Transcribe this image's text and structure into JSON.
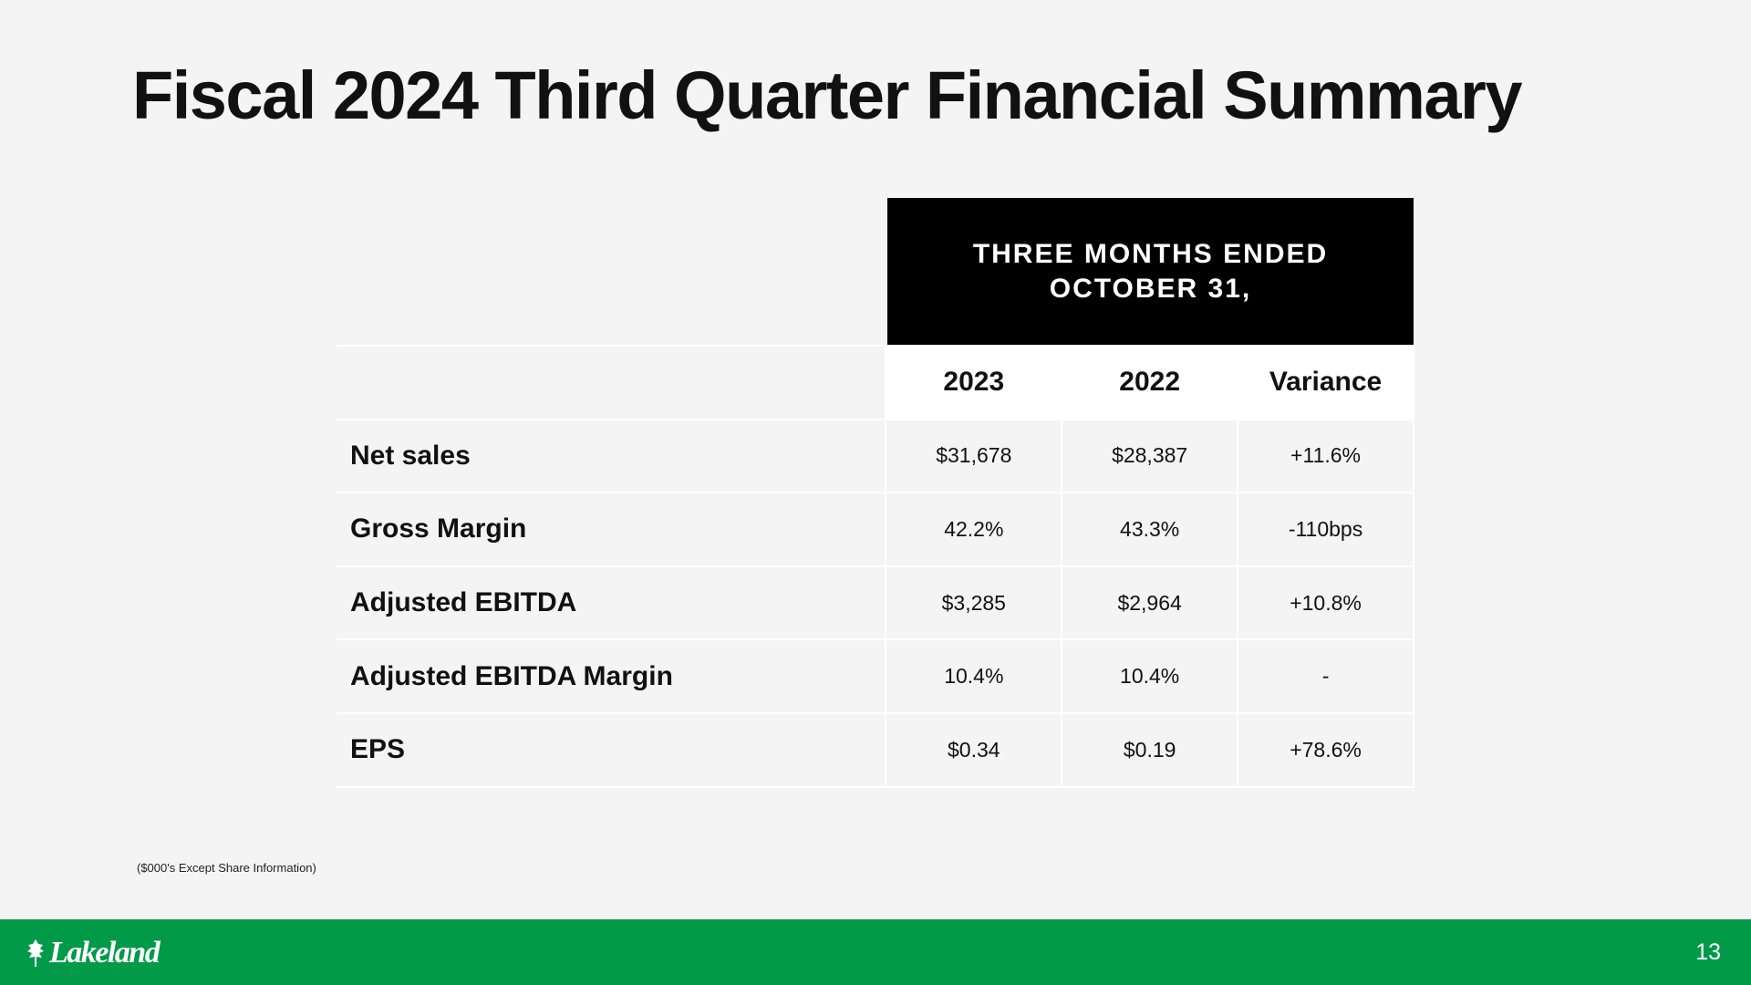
{
  "slide": {
    "title": "Fiscal 2024 Third Quarter Financial Summary",
    "footnote": "($000's Except Share Information)",
    "page_number": "13"
  },
  "table": {
    "period_header_line1": "THREE MONTHS ENDED",
    "period_header_line2": "OCTOBER 31,",
    "columns": [
      "2023",
      "2022",
      "Variance"
    ],
    "rows": [
      {
        "label": "Net sales",
        "values": [
          "$31,678",
          "$28,387",
          "+11.6%"
        ]
      },
      {
        "label": "Gross Margin",
        "values": [
          "42.2%",
          "43.3%",
          "-110bps"
        ]
      },
      {
        "label": "Adjusted EBITDA",
        "values": [
          "$3,285",
          "$2,964",
          "+10.8%"
        ]
      },
      {
        "label": "Adjusted EBITDA Margin",
        "values": [
          "10.4%",
          "10.4%",
          "-"
        ]
      },
      {
        "label": "EPS",
        "values": [
          "$0.34",
          "$0.19",
          "+78.6%"
        ]
      }
    ]
  },
  "footer": {
    "logo_text": "Lakeland",
    "logo_icon": "leaf-icon",
    "bar_color": "#009a49"
  }
}
